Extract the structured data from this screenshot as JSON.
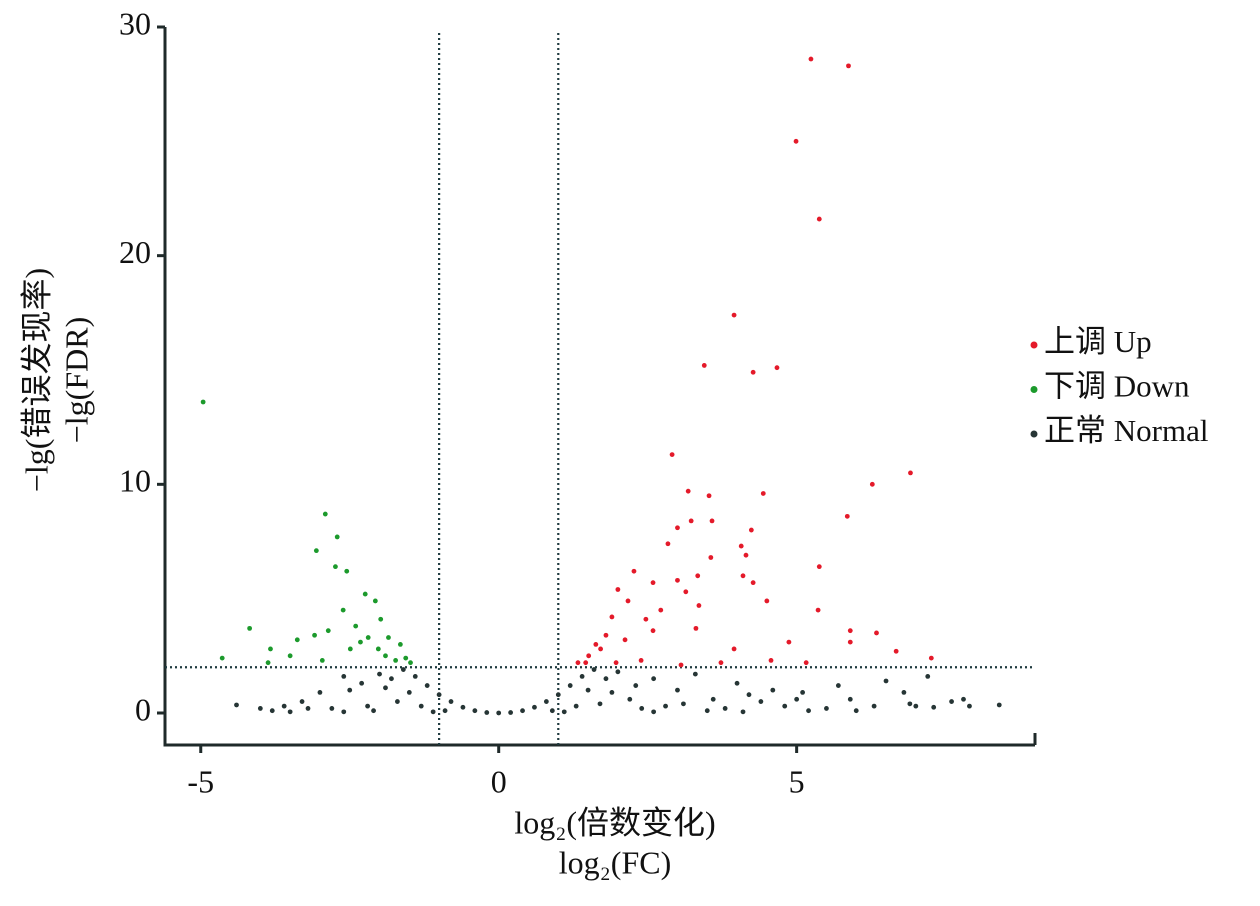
{
  "chart_data": {
    "type": "scatter",
    "x_label": [
      "log₂(倍数变化)",
      "log₂(FC)"
    ],
    "y_label": [
      "−lg(错误发现率)",
      "−lg(FDR)"
    ],
    "xlim": [
      -5.6,
      9.0
    ],
    "ylim": [
      -1.4,
      30
    ],
    "xticks": [
      -5,
      0,
      5
    ],
    "yticks": [
      0,
      10,
      20,
      30
    ],
    "vlines": [
      -1,
      1
    ],
    "hlines": [
      2
    ],
    "legend": "right",
    "series": [
      {
        "name": "上调 Up",
        "color": "#e41a2a",
        "x": [
          5.24,
          5.87,
          4.99,
          5.38,
          3.95,
          3.45,
          4.67,
          4.27,
          6.91,
          6.27,
          2.91,
          3.18,
          3.53,
          4.44,
          5.85,
          3.23,
          3.58,
          3.0,
          4.24,
          2.84,
          4.07,
          4.15,
          3.56,
          5.38,
          2.27,
          3.34,
          3.0,
          4.1,
          2.59,
          2.0,
          4.27,
          3.14,
          2.17,
          3.36,
          4.5,
          5.36,
          1.9,
          2.72,
          2.47,
          3.31,
          5.9,
          6.34,
          1.8,
          2.59,
          2.12,
          3.95,
          4.87,
          5.9,
          1.63,
          6.67,
          1.51,
          1.71,
          4.57,
          7.26,
          1.97,
          5.16,
          3.06,
          1.46,
          3.73,
          2.39,
          1.33
        ],
        "values": [
          28.6,
          28.3,
          25.0,
          21.6,
          17.4,
          15.2,
          15.1,
          14.9,
          10.5,
          10.0,
          11.3,
          9.7,
          9.5,
          9.6,
          8.6,
          8.4,
          8.4,
          8.1,
          8.0,
          7.4,
          7.3,
          6.9,
          6.8,
          6.4,
          6.2,
          6.0,
          5.8,
          6.0,
          5.7,
          5.4,
          5.7,
          5.3,
          4.9,
          4.7,
          4.9,
          4.5,
          4.2,
          4.5,
          4.1,
          3.7,
          3.6,
          3.5,
          3.4,
          3.6,
          3.2,
          2.8,
          3.1,
          3.1,
          3.0,
          2.7,
          2.5,
          2.8,
          2.3,
          2.4,
          2.2,
          2.2,
          2.1,
          2.2,
          2.2,
          2.3,
          2.2
        ]
      },
      {
        "name": "下调 Down",
        "color": "#1c9a2c",
        "x": [
          -4.96,
          -2.91,
          -2.71,
          -3.06,
          -2.55,
          -2.74,
          -4.18,
          -2.24,
          -2.07,
          -2.61,
          -1.98,
          -2.4,
          -2.86,
          -3.38,
          -3.09,
          -3.83,
          -4.64,
          -3.5,
          -2.19,
          -1.65,
          -1.9,
          -1.73,
          -1.48,
          -2.96,
          -2.49,
          -1.85,
          -3.87,
          -1.56,
          -2.02,
          -2.32
        ],
        "values": [
          13.6,
          8.7,
          7.7,
          7.1,
          6.2,
          6.4,
          3.7,
          5.2,
          4.9,
          4.5,
          4.1,
          3.8,
          3.6,
          3.2,
          3.4,
          2.8,
          2.4,
          2.5,
          3.3,
          3.0,
          2.5,
          2.3,
          2.2,
          2.3,
          2.8,
          3.3,
          2.2,
          2.4,
          2.8,
          3.1
        ]
      },
      {
        "name": "正常 Normal",
        "color": "#263535",
        "x": [
          0,
          0.2,
          -0.2,
          0.4,
          -0.4,
          0.6,
          -0.6,
          0.8,
          -0.8,
          1.0,
          -1.0,
          1.2,
          -1.2,
          1.4,
          -1.4,
          1.6,
          -1.6,
          1.8,
          -1.8,
          2.0,
          -2.0,
          2.3,
          -2.3,
          2.6,
          -2.6,
          3.0,
          -3.0,
          3.3,
          -3.3,
          3.6,
          -3.6,
          4.0,
          -4.0,
          4.4,
          -4.4,
          4.8,
          5.1,
          5.5,
          5.9,
          6.3,
          6.8,
          7.0,
          7.2,
          7.6,
          7.9,
          8.4,
          7.3,
          6.5,
          5.7,
          5.2,
          4.6,
          3.8,
          2.8,
          2.2,
          1.7,
          1.3,
          -1.3,
          -1.7,
          -2.2,
          -2.8,
          -3.2,
          -3.8,
          -2.5,
          -1.9,
          -1.5,
          1.5,
          1.9,
          2.4,
          3.1,
          3.5,
          4.2,
          5.0,
          6.0,
          6.9,
          7.8,
          -2.1,
          -3.5,
          4.1,
          0.9,
          -0.9,
          1.1,
          -1.1,
          2.6,
          -2.6
        ],
        "values": [
          0,
          0.02,
          0.02,
          0.1,
          0.1,
          0.25,
          0.25,
          0.5,
          0.5,
          0.8,
          0.8,
          1.2,
          1.2,
          1.6,
          1.6,
          1.9,
          1.9,
          1.5,
          1.5,
          1.8,
          1.7,
          1.2,
          1.3,
          1.5,
          1.6,
          1.0,
          0.9,
          1.7,
          0.5,
          0.6,
          0.3,
          1.3,
          0.2,
          0.5,
          0.35,
          0.3,
          0.9,
          0.2,
          0.6,
          0.3,
          0.9,
          0.3,
          1.6,
          0.5,
          0.3,
          0.35,
          0.25,
          1.4,
          1.2,
          0.1,
          1.0,
          0.2,
          0.3,
          0.6,
          0.4,
          0.3,
          0.3,
          0.5,
          0.3,
          0.2,
          0.2,
          0.1,
          1.0,
          1.1,
          0.9,
          1.0,
          0.9,
          0.2,
          0.4,
          0.1,
          0.8,
          0.6,
          0.1,
          0.4,
          0.6,
          0.1,
          0.05,
          0.05,
          0.1,
          0.1,
          0.05,
          0.05,
          0.05,
          0.05
        ]
      }
    ]
  }
}
